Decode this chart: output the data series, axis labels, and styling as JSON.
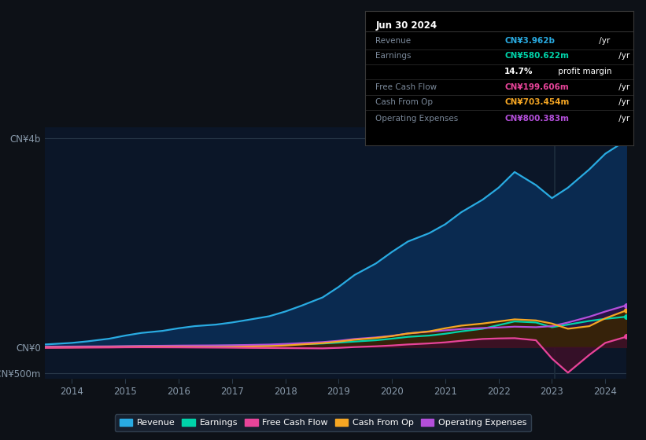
{
  "bg_color": "#0d1117",
  "plot_bg_color": "#0b1628",
  "title_box_bg": "#000000",
  "title_box_border": "#2a3a4a",
  "years": [
    2013.5,
    2014.0,
    2014.3,
    2014.7,
    2015.0,
    2015.3,
    2015.7,
    2016.0,
    2016.3,
    2016.7,
    2017.0,
    2017.3,
    2017.7,
    2018.0,
    2018.3,
    2018.7,
    2019.0,
    2019.3,
    2019.7,
    2020.0,
    2020.3,
    2020.7,
    2021.0,
    2021.3,
    2021.7,
    2022.0,
    2022.3,
    2022.7,
    2023.0,
    2023.3,
    2023.7,
    2024.0,
    2024.4
  ],
  "revenue": [
    50,
    80,
    110,
    160,
    220,
    270,
    310,
    360,
    400,
    430,
    470,
    520,
    590,
    680,
    790,
    950,
    1150,
    1380,
    1600,
    1820,
    2020,
    2180,
    2350,
    2580,
    2820,
    3050,
    3350,
    3100,
    2850,
    3050,
    3400,
    3700,
    3962
  ],
  "earnings": [
    2,
    3,
    5,
    8,
    12,
    15,
    18,
    20,
    22,
    25,
    28,
    32,
    38,
    45,
    55,
    68,
    85,
    105,
    130,
    160,
    195,
    220,
    255,
    300,
    350,
    420,
    490,
    470,
    380,
    430,
    500,
    540,
    581
  ],
  "free_cash_flow": [
    -15,
    -12,
    -10,
    -8,
    -5,
    -4,
    -5,
    -6,
    -8,
    -10,
    -12,
    -15,
    -18,
    -20,
    -22,
    -25,
    -15,
    0,
    15,
    30,
    50,
    70,
    90,
    120,
    155,
    165,
    170,
    130,
    -220,
    -490,
    -150,
    80,
    199
  ],
  "cash_from_op": [
    -8,
    -5,
    -3,
    0,
    2,
    5,
    6,
    5,
    3,
    2,
    5,
    10,
    18,
    30,
    50,
    75,
    105,
    140,
    175,
    210,
    260,
    300,
    360,
    410,
    450,
    490,
    530,
    510,
    450,
    350,
    400,
    550,
    703
  ],
  "op_expenses": [
    8,
    10,
    12,
    14,
    18,
    22,
    25,
    28,
    30,
    32,
    35,
    40,
    48,
    60,
    75,
    95,
    120,
    155,
    185,
    215,
    260,
    295,
    320,
    345,
    365,
    375,
    390,
    380,
    400,
    470,
    580,
    680,
    800
  ],
  "ylim": [
    -600,
    4200
  ],
  "ytick_positions": [
    -500,
    0,
    4000
  ],
  "ytick_labels": [
    "-CN¥500m",
    "CN¥0",
    "CN¥4b"
  ],
  "xticks": [
    2014,
    2015,
    2016,
    2017,
    2018,
    2019,
    2020,
    2021,
    2022,
    2023,
    2024
  ],
  "revenue_color": "#29abe2",
  "revenue_fill": "#0a2a50",
  "earnings_color": "#00d4aa",
  "earnings_fill": "#003535",
  "free_cash_flow_color": "#e8449a",
  "free_cash_flow_fill": "#3d0f28",
  "cash_from_op_color": "#f5a623",
  "cash_from_op_fill": "#3a2500",
  "op_expenses_color": "#b44fdb",
  "op_expenses_fill": "#2d1045",
  "legend_entries": [
    {
      "label": "Revenue",
      "color": "#29abe2"
    },
    {
      "label": "Earnings",
      "color": "#00d4aa"
    },
    {
      "label": "Free Cash Flow",
      "color": "#e8449a"
    },
    {
      "label": "Cash From Op",
      "color": "#f5a623"
    },
    {
      "label": "Operating Expenses",
      "color": "#b44fdb"
    }
  ],
  "info_box": {
    "date": "Jun 30 2024",
    "rows": [
      {
        "label": "Revenue",
        "value": "CN¥3.962b",
        "suffix": " /yr",
        "color": "#29abe2"
      },
      {
        "label": "Earnings",
        "value": "CN¥580.622m",
        "suffix": " /yr",
        "color": "#00d4aa"
      },
      {
        "label": "",
        "value": "14.7%",
        "suffix": " profit margin",
        "color": "#ffffff"
      },
      {
        "label": "Free Cash Flow",
        "value": "CN¥199.606m",
        "suffix": " /yr",
        "color": "#e8449a"
      },
      {
        "label": "Cash From Op",
        "value": "CN¥703.454m",
        "suffix": " /yr",
        "color": "#f5a623"
      },
      {
        "label": "Operating Expenses",
        "value": "CN¥800.383m",
        "suffix": " /yr",
        "color": "#b44fdb"
      }
    ]
  }
}
